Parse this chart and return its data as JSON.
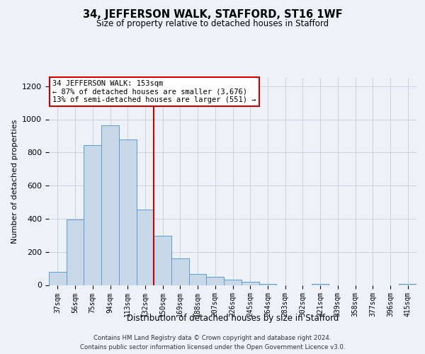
{
  "title": "34, JEFFERSON WALK, STAFFORD, ST16 1WF",
  "subtitle": "Size of property relative to detached houses in Stafford",
  "xlabel": "Distribution of detached houses by size in Stafford",
  "ylabel": "Number of detached properties",
  "categories": [
    "37sqm",
    "56sqm",
    "75sqm",
    "94sqm",
    "113sqm",
    "132sqm",
    "150sqm",
    "169sqm",
    "188sqm",
    "207sqm",
    "226sqm",
    "245sqm",
    "264sqm",
    "283sqm",
    "302sqm",
    "321sqm",
    "339sqm",
    "358sqm",
    "377sqm",
    "396sqm",
    "415sqm"
  ],
  "bar_heights": [
    80,
    395,
    845,
    965,
    880,
    455,
    295,
    160,
    65,
    50,
    30,
    20,
    8,
    0,
    0,
    8,
    0,
    0,
    0,
    0,
    8
  ],
  "ylim": [
    0,
    1250
  ],
  "yticks": [
    0,
    200,
    400,
    600,
    800,
    1000,
    1200
  ],
  "highlight_line_index": 6,
  "bar_color": "#c8d8e8",
  "bar_edge_color": "#5b9bd5",
  "highlight_line_color": "#cc0000",
  "annotation_text": "34 JEFFERSON WALK: 153sqm\n← 87% of detached houses are smaller (3,676)\n13% of semi-detached houses are larger (551) →",
  "annotation_box_color": "#ffffff",
  "annotation_box_edge": "#cc0000",
  "footer_line1": "Contains HM Land Registry data © Crown copyright and database right 2024.",
  "footer_line2": "Contains public sector information licensed under the Open Government Licence v3.0.",
  "background_color": "#eef2f8",
  "grid_color": "#c0c8d8"
}
